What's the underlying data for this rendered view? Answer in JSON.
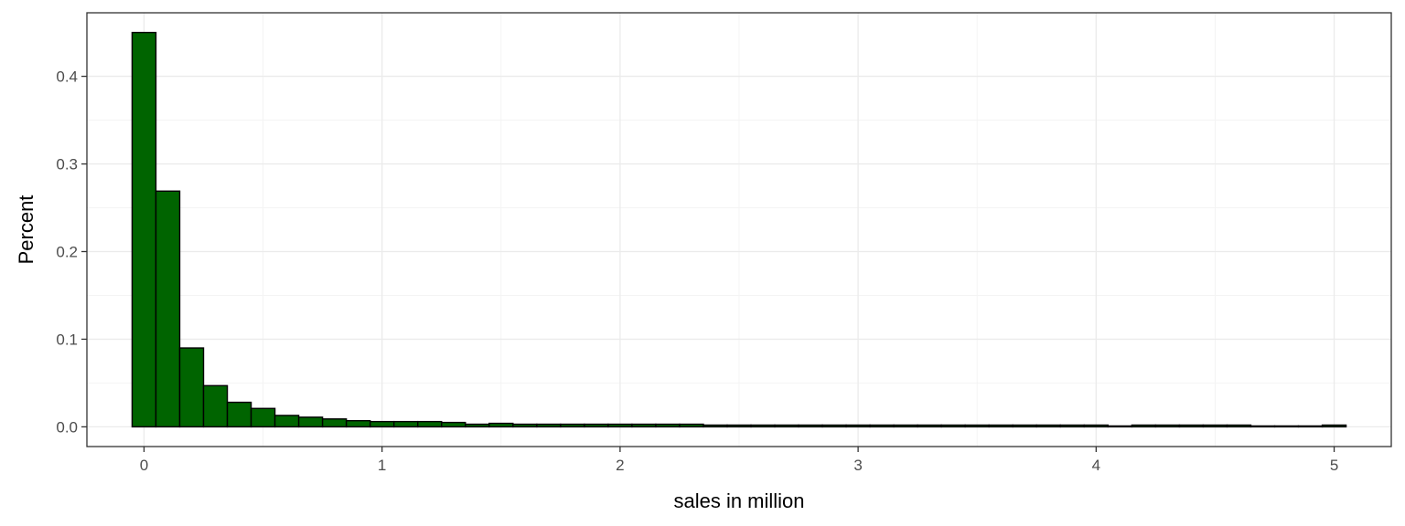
{
  "chart_data": {
    "type": "bar",
    "subtype": "histogram",
    "title": "",
    "xlabel": "sales in million",
    "ylabel": "Percent",
    "bin_width": 0.1,
    "x": [
      0.0,
      0.1,
      0.2,
      0.3,
      0.4,
      0.5,
      0.6,
      0.7,
      0.8,
      0.9,
      1.0,
      1.1,
      1.2,
      1.3,
      1.4,
      1.5,
      1.6,
      1.7,
      1.8,
      1.9,
      2.0,
      2.1,
      2.2,
      2.3,
      2.4,
      2.5,
      2.6,
      2.7,
      2.8,
      2.9,
      3.0,
      3.1,
      3.2,
      3.3,
      3.4,
      3.5,
      3.6,
      3.7,
      3.8,
      3.9,
      4.0,
      4.1,
      4.2,
      4.3,
      4.4,
      4.5,
      4.6,
      4.7,
      4.8,
      4.9,
      5.0
    ],
    "values": [
      0.45,
      0.269,
      0.09,
      0.047,
      0.028,
      0.021,
      0.013,
      0.011,
      0.009,
      0.007,
      0.006,
      0.006,
      0.006,
      0.005,
      0.003,
      0.004,
      0.003,
      0.003,
      0.003,
      0.003,
      0.003,
      0.003,
      0.003,
      0.003,
      0.002,
      0.002,
      0.002,
      0.002,
      0.002,
      0.002,
      0.002,
      0.002,
      0.002,
      0.002,
      0.002,
      0.002,
      0.002,
      0.002,
      0.002,
      0.002,
      0.002,
      0.001,
      0.002,
      0.002,
      0.002,
      0.002,
      0.002,
      0.001,
      0.001,
      0.001,
      0.002
    ],
    "xlim": [
      -0.24,
      5.24
    ],
    "ylim": [
      -0.0225,
      0.4725
    ],
    "x_ticks": [
      0,
      1,
      2,
      3,
      4,
      5
    ],
    "x_tick_labels": [
      "0",
      "1",
      "2",
      "3",
      "4",
      "5"
    ],
    "y_ticks": [
      0.0,
      0.1,
      0.2,
      0.3,
      0.4
    ],
    "y_tick_labels": [
      "0.0",
      "0.1",
      "0.2",
      "0.3",
      "0.4"
    ],
    "grid": true,
    "legend": "none",
    "colors": {
      "bar_fill": "#006400",
      "bar_stroke": "#000000",
      "grid_major": "#ebebeb",
      "grid_minor": "#f4f4f4",
      "panel_border": "#333333",
      "tick_text": "#4d4d4d",
      "background": "#ffffff"
    }
  }
}
